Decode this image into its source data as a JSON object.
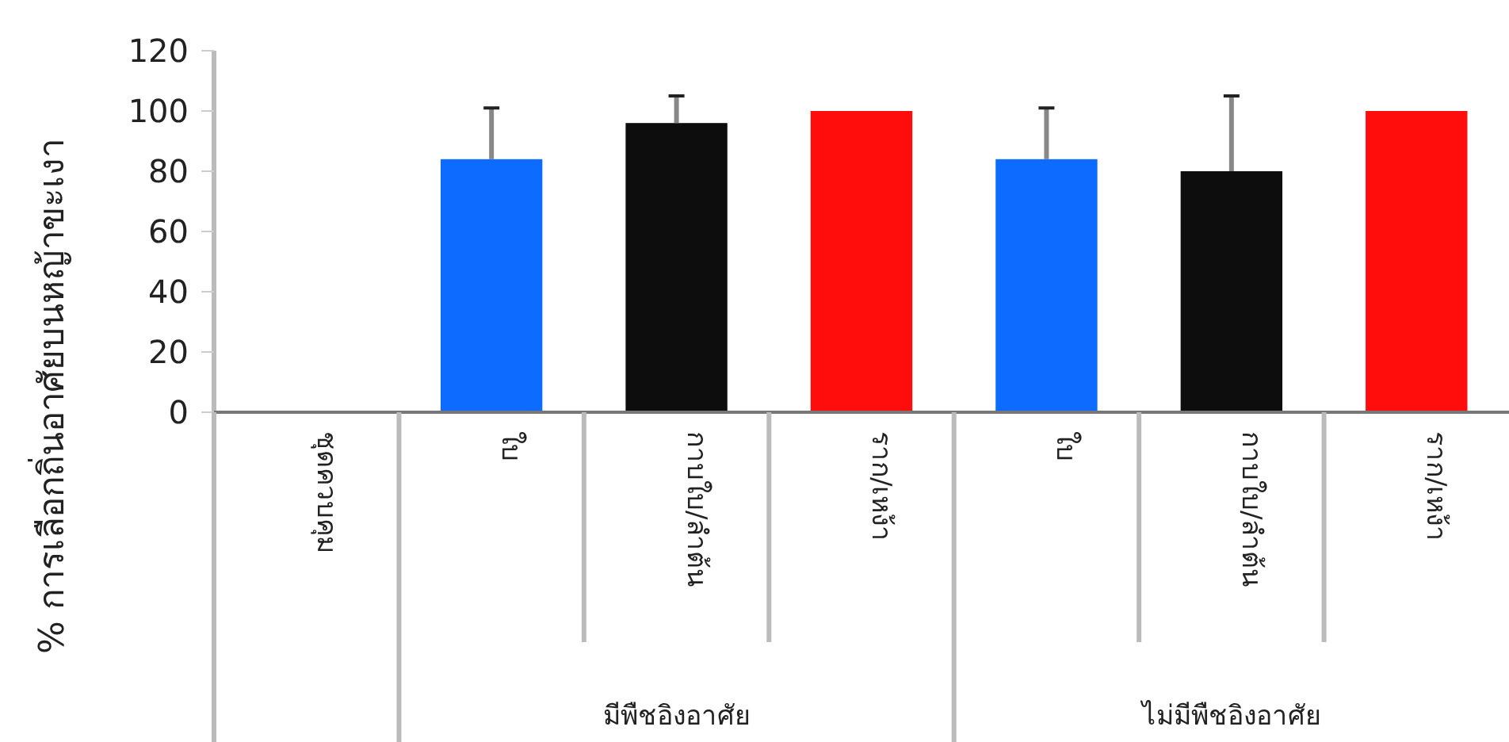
{
  "chart_data": {
    "type": "bar",
    "ylabel": "% การเลือกถิ่นอาศัยบนหญ้าขะเงา",
    "categories": [
      "ชุดควบคุม",
      "ใบ",
      "กาบใบ/ลำต้น",
      "ราก/เหง้า",
      "ใบ",
      "กาบใบ/ลำต้น",
      "ราก/เหง้า"
    ],
    "values": [
      0,
      84,
      96,
      100,
      84,
      80,
      100
    ],
    "errors": [
      null,
      17,
      9,
      null,
      17,
      25,
      null
    ],
    "colors": [
      null,
      "#0d6cff",
      "#0d0d0d",
      "#ff0d0d",
      "#0d6cff",
      "#0d0d0d",
      "#ff0d0d"
    ],
    "ylim": [
      0,
      120
    ],
    "yticks": [
      0,
      20,
      40,
      60,
      80,
      100,
      120
    ],
    "grid": false,
    "annotations": [
      "มีพืชอิงอาศัย",
      "ไม่มีพืชอิงอาศัย"
    ]
  }
}
